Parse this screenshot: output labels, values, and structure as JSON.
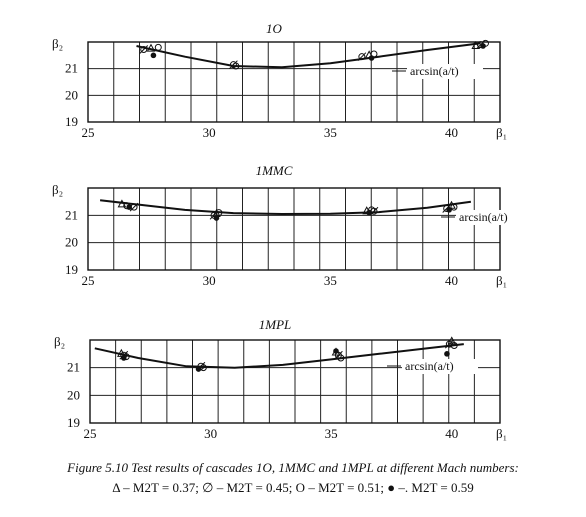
{
  "chart_data": [
    {
      "type": "scatter",
      "title": "1O",
      "xlabel": "β₁",
      "ylabel": "β₂",
      "xlim": [
        25,
        42
      ],
      "ylim": [
        19,
        22
      ],
      "xticks": [
        25,
        30,
        35,
        40
      ],
      "yticks": [
        19,
        20,
        21
      ],
      "grid": true,
      "curve_label": "arcsin(a/t)",
      "curve": {
        "x": [
          27,
          29,
          31,
          33,
          35,
          37,
          39,
          41.2
        ],
        "y": [
          21.85,
          21.45,
          21.1,
          21.05,
          21.2,
          21.45,
          21.7,
          21.95
        ]
      },
      "series": [
        {
          "name": "M2T = 0.37",
          "marker": "triangle",
          "points": [
            [
              27.6,
              21.75
            ],
            [
              36.6,
              21.5
            ],
            [
              41.0,
              21.85
            ]
          ]
        },
        {
          "name": "M2T = 0.45",
          "marker": "slashed-circle",
          "points": [
            [
              27.3,
              21.72
            ],
            [
              31.0,
              21.15
            ],
            [
              36.3,
              21.45
            ],
            [
              41.2,
              21.9
            ]
          ]
        },
        {
          "name": "M2T = 0.51",
          "marker": "circle",
          "points": [
            [
              27.9,
              21.8
            ],
            [
              31.1,
              21.1
            ],
            [
              36.8,
              21.55
            ],
            [
              41.4,
              21.95
            ]
          ]
        },
        {
          "name": "M2T = 0.59",
          "marker": "dot",
          "points": [
            [
              27.7,
              21.5
            ],
            [
              36.7,
              21.4
            ],
            [
              41.3,
              21.85
            ]
          ]
        }
      ]
    },
    {
      "type": "scatter",
      "title": "1MMC",
      "xlabel": "β₁",
      "ylabel": "β₂",
      "xlim": [
        25,
        42
      ],
      "ylim": [
        19,
        22
      ],
      "xticks": [
        25,
        30,
        35,
        40
      ],
      "yticks": [
        19,
        20,
        21
      ],
      "grid": true,
      "curve_label": "arcsin(a/t)",
      "curve": {
        "x": [
          25.5,
          27,
          29,
          31,
          33,
          35,
          37,
          39,
          40.8
        ],
        "y": [
          21.55,
          21.4,
          21.2,
          21.08,
          21.05,
          21.06,
          21.12,
          21.28,
          21.5
        ]
      },
      "series": [
        {
          "name": "M2T = 0.37",
          "marker": "triangle",
          "points": [
            [
              26.4,
              21.4
            ],
            [
              30.3,
              21.05
            ],
            [
              36.5,
              21.15
            ],
            [
              40.0,
              21.35
            ]
          ]
        },
        {
          "name": "M2T = 0.45",
          "marker": "slashed-circle",
          "points": [
            [
              26.9,
              21.3
            ],
            [
              30.2,
              21.0
            ],
            [
              36.8,
              21.15
            ],
            [
              39.8,
              21.25
            ]
          ]
        },
        {
          "name": "M2T = 0.51",
          "marker": "circle",
          "points": [
            [
              26.6,
              21.35
            ],
            [
              30.4,
              21.1
            ],
            [
              36.7,
              21.2
            ],
            [
              40.1,
              21.3
            ]
          ]
        },
        {
          "name": "M2T = 0.59",
          "marker": "dot",
          "points": [
            [
              26.7,
              21.3
            ],
            [
              30.3,
              20.9
            ],
            [
              36.6,
              21.1
            ],
            [
              39.9,
              21.2
            ]
          ]
        }
      ]
    },
    {
      "type": "scatter",
      "title": "1MPL",
      "xlabel": "β₁",
      "ylabel": "β₂",
      "xlim": [
        25,
        42
      ],
      "ylim": [
        19,
        22
      ],
      "xticks": [
        25,
        30,
        35,
        40
      ],
      "yticks": [
        19,
        20,
        21
      ],
      "grid": true,
      "curve_label": "arcsin(a/t)",
      "curve": {
        "x": [
          25.2,
          27,
          29,
          31,
          33,
          35,
          37,
          39,
          40.5
        ],
        "y": [
          21.7,
          21.35,
          21.05,
          21.0,
          21.1,
          21.3,
          21.5,
          21.7,
          21.85
        ]
      },
      "series": [
        {
          "name": "M2T = 0.37",
          "marker": "triangle",
          "points": [
            [
              26.3,
              21.5
            ],
            [
              35.2,
              21.55
            ],
            [
              40.0,
              21.95
            ]
          ]
        },
        {
          "name": "M2T = 0.45",
          "marker": "slashed-circle",
          "points": [
            [
              26.4,
              21.45
            ],
            [
              29.6,
              21.05
            ],
            [
              35.3,
              21.45
            ],
            [
              39.9,
              21.85
            ]
          ]
        },
        {
          "name": "M2T = 0.51",
          "marker": "circle",
          "points": [
            [
              26.5,
              21.4
            ],
            [
              29.7,
              21.0
            ],
            [
              35.4,
              21.35
            ],
            [
              40.1,
              21.8
            ]
          ]
        },
        {
          "name": "M2T = 0.59",
          "marker": "dot",
          "points": [
            [
              26.4,
              21.35
            ],
            [
              29.5,
              20.95
            ],
            [
              35.2,
              21.6
            ],
            [
              39.8,
              21.5
            ]
          ]
        }
      ]
    }
  ],
  "caption": {
    "title": "Figure 5.10  Test results of cascades 1O, 1MMC and 1MPL at different Mach numbers:",
    "legend": [
      {
        "symbol": "Δ",
        "text": "– M2T = 0.37;"
      },
      {
        "symbol": "∅",
        "text": "– M2T = 0.45;"
      },
      {
        "symbol": "O",
        "text": "– M2T = 0.51;"
      },
      {
        "symbol": "●",
        "text": "–. M2T = 0.59"
      }
    ]
  }
}
